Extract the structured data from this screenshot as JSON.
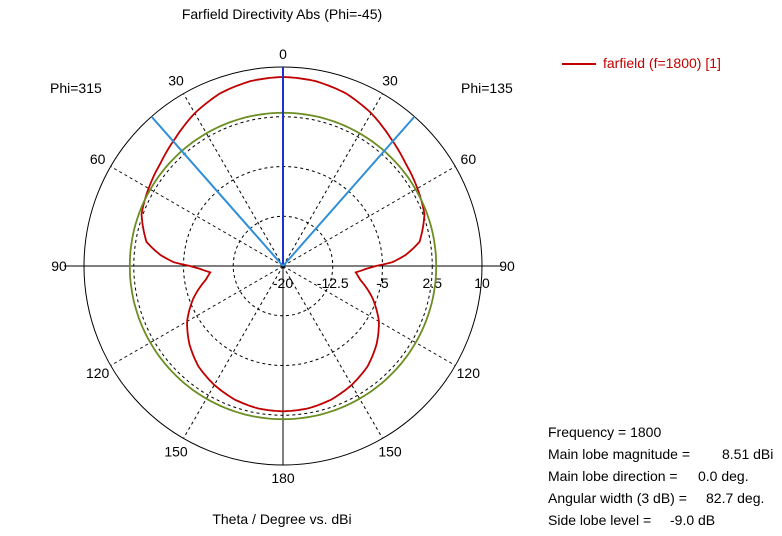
{
  "chart_data": {
    "type": "polar",
    "title": "Farfield Directivity Abs (Phi=-45)",
    "xlabel": "Theta / Degree vs. dBi",
    "phi_labels": {
      "left": "Phi=315",
      "right": "Phi=135"
    },
    "angle_ticks": [
      "0",
      "30",
      "60",
      "90",
      "120",
      "150",
      "180",
      "150",
      "120",
      "90",
      "60",
      "30"
    ],
    "radial_ticks": [
      "-20",
      "-12.5",
      "-5",
      "2.5",
      "10"
    ],
    "radial_range": [
      -20,
      10
    ],
    "grid": true,
    "legend_position": "top-right",
    "series": [
      {
        "name": "farfield (f=1800) [1]",
        "color": "#c00000",
        "theta_deg": [
          0,
          10,
          20,
          30,
          40,
          50,
          60,
          70,
          80,
          85,
          88,
          90,
          92,
          95,
          100,
          110,
          120,
          130,
          140,
          150,
          160,
          170,
          180
        ],
        "dbi": [
          8.5,
          8.3,
          7.7,
          6.6,
          5.2,
          4.1,
          3.4,
          2.7,
          0.9,
          -1.5,
          -3.5,
          -6.0,
          -7.5,
          -9.0,
          -8.2,
          -5.6,
          -3.3,
          -1.6,
          -0.2,
          0.7,
          1.4,
          1.8,
          1.9
        ]
      },
      {
        "name": "",
        "color": "#6b8e23",
        "theta_deg": [
          0,
          360
        ],
        "dbi": [
          3.1,
          3.1
        ]
      }
    ],
    "markers": {
      "main_lobe_direction_deg": 0.0,
      "beam_edges_deg": [
        -41.35,
        41.35
      ]
    }
  },
  "legend": {
    "label": "farfield (f=1800) [1]"
  },
  "stats": [
    {
      "label": "Frequency = 1800",
      "value": ""
    },
    {
      "label": "Main lobe magnitude =",
      "value": "8.51 dBi"
    },
    {
      "label": "Main lobe direction =",
      "value": "0.0 deg."
    },
    {
      "label": "Angular width (3 dB) =",
      "value": "82.7 deg."
    },
    {
      "label": "Side lobe level =",
      "value": "-9.0 dB"
    }
  ]
}
